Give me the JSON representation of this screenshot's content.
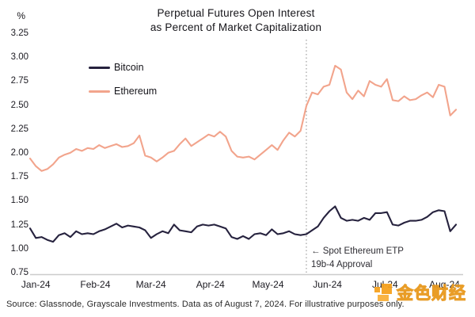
{
  "chart_data": {
    "type": "line",
    "title": "Perpetual Futures Open Interest as Percent of Market Capitalization",
    "title_lines": [
      "Perpetual Futures Open Interest",
      "as Percent of Market Capitalization"
    ],
    "unit_label": "%",
    "ylim": [
      0.75,
      3.25
    ],
    "y_ticks": [
      "3.25",
      "3.00",
      "2.75",
      "2.50",
      "2.25",
      "2.00",
      "1.75",
      "1.50",
      "1.25",
      "1.00",
      "0.75"
    ],
    "y_tick_values": [
      3.25,
      3.0,
      2.75,
      2.5,
      2.25,
      2.0,
      1.75,
      1.5,
      1.25,
      1.0,
      0.75
    ],
    "x_tick_labels": [
      "Jan-24",
      "Feb-24",
      "Mar-24",
      "Apr-24",
      "May-24",
      "Jun-24",
      "Jul-24",
      "Aug-24"
    ],
    "x_tick_days": [
      3,
      34,
      63,
      94,
      124,
      155,
      185,
      216
    ],
    "x_domain_days": [
      0,
      222
    ],
    "sample_step_days": 3,
    "grid": false,
    "legend_position": "upper-left-inside",
    "axis_color": "#cccccc",
    "event_line_color": "#8a8a8a",
    "series": [
      {
        "name": "Bitcoin",
        "color": "#26223E",
        "values": [
          1.22,
          1.12,
          1.13,
          1.1,
          1.08,
          1.15,
          1.17,
          1.13,
          1.19,
          1.16,
          1.17,
          1.16,
          1.19,
          1.21,
          1.24,
          1.27,
          1.23,
          1.25,
          1.24,
          1.23,
          1.2,
          1.12,
          1.16,
          1.19,
          1.17,
          1.26,
          1.2,
          1.19,
          1.18,
          1.24,
          1.26,
          1.25,
          1.26,
          1.24,
          1.22,
          1.13,
          1.11,
          1.14,
          1.11,
          1.16,
          1.17,
          1.15,
          1.21,
          1.16,
          1.17,
          1.19,
          1.16,
          1.15,
          1.16,
          1.2,
          1.24,
          1.33,
          1.4,
          1.45,
          1.33,
          1.3,
          1.31,
          1.3,
          1.33,
          1.31,
          1.38,
          1.38,
          1.39,
          1.26,
          1.25,
          1.28,
          1.3,
          1.3,
          1.31,
          1.34,
          1.39,
          1.41,
          1.4,
          1.19,
          1.26
        ]
      },
      {
        "name": "Ethereum",
        "color": "#F2A48C",
        "values": [
          1.95,
          1.87,
          1.82,
          1.84,
          1.89,
          1.96,
          1.99,
          2.01,
          2.05,
          2.03,
          2.06,
          2.05,
          2.09,
          2.06,
          2.08,
          2.1,
          2.07,
          2.08,
          2.11,
          2.19,
          1.98,
          1.96,
          1.92,
          1.96,
          2.01,
          2.03,
          2.1,
          2.16,
          2.08,
          2.12,
          2.16,
          2.2,
          2.18,
          2.23,
          2.18,
          2.03,
          1.97,
          1.96,
          1.97,
          1.94,
          1.99,
          2.04,
          2.09,
          2.04,
          2.14,
          2.22,
          2.18,
          2.24,
          2.5,
          2.64,
          2.62,
          2.7,
          2.72,
          2.92,
          2.88,
          2.64,
          2.57,
          2.66,
          2.6,
          2.76,
          2.72,
          2.7,
          2.78,
          2.56,
          2.55,
          2.6,
          2.56,
          2.57,
          2.61,
          2.64,
          2.59,
          2.72,
          2.7,
          2.4,
          2.46
        ]
      }
    ],
    "annotation": {
      "line1": "← Spot Ethereum ETP",
      "line2": "19b-4 Approval",
      "x_day": 144,
      "marker": "dashed-vertical-line"
    }
  },
  "footer": {
    "source_text": "Source: Glassnode, Grayscale Investments. Data as of August 7, 2024. For illustrative purposes only."
  },
  "logo": {
    "text": "金色财经",
    "color": "#F6A21F"
  }
}
